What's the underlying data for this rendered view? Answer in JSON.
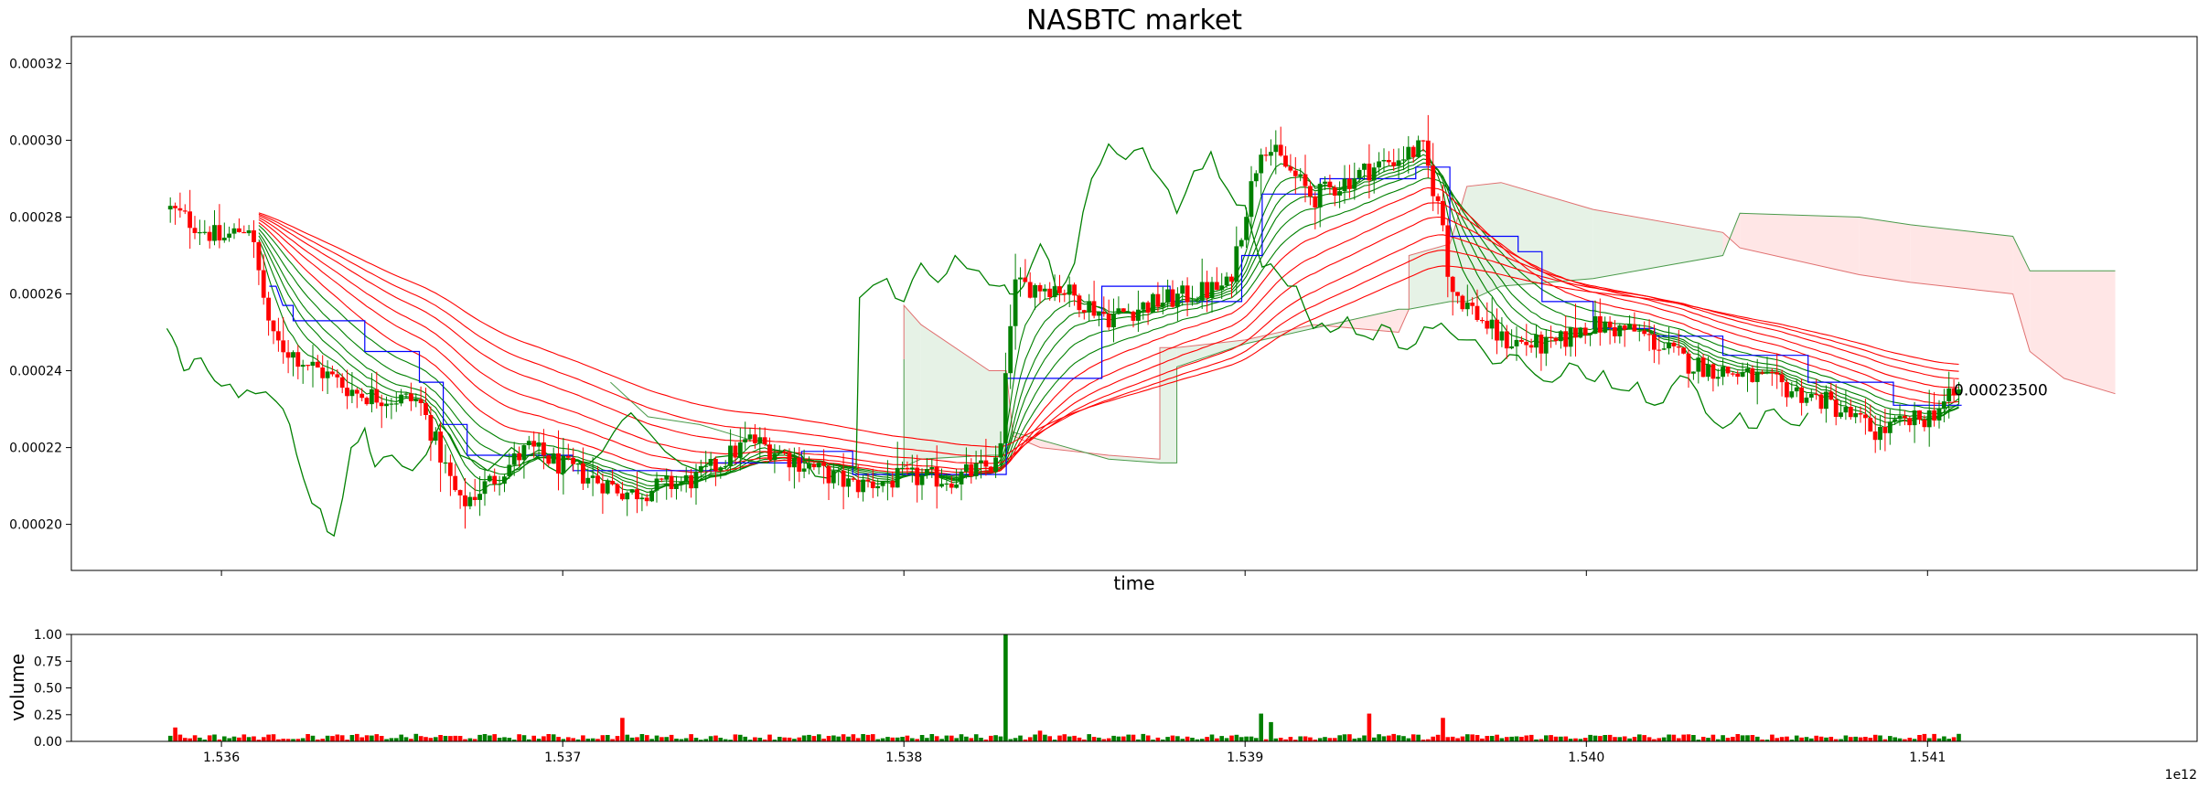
{
  "chart_data": [
    {
      "type": "candlestick",
      "title": "NASBTC market",
      "xlabel": "time",
      "ylabel": "",
      "xlim": [
        1535560000000,
        1541790000000
      ],
      "ylim": [
        0.000188,
        0.000327
      ],
      "yticks": [
        0.0002,
        0.00022,
        0.00024,
        0.00026,
        0.00028,
        0.0003,
        0.00032
      ],
      "ytick_labels": [
        "0.00020",
        "0.00022",
        "0.00024",
        "0.00026",
        "0.00028",
        "0.00030",
        "0.00032"
      ],
      "xticks": [
        1536000000000,
        1537000000000,
        1538000000000,
        1539000000000,
        1540000000000,
        1541000000000
      ],
      "colors": {
        "up": "#008000",
        "down": "#ff0000",
        "kijun": "#0000ff",
        "chikou": "#008000",
        "ribbon_fast": "#008000",
        "ribbon_slow": "#ff0000",
        "cloud_bull": "#e6f2e6",
        "cloud_bear": "#ffe6e6"
      },
      "last_price_annotation": "0.00023500",
      "last_price": 0.000235,
      "anchors": [
        [
          1535850000000,
          0.000282
        ],
        [
          1536000000000,
          0.000274
        ],
        [
          1536080000000,
          0.000278
        ],
        [
          1536150000000,
          0.000248
        ],
        [
          1536250000000,
          0.000242
        ],
        [
          1536400000000,
          0.000234
        ],
        [
          1536580000000,
          0.000232
        ],
        [
          1536700000000,
          0.000205
        ],
        [
          1536800000000,
          0.000212
        ],
        [
          1536900000000,
          0.00022
        ],
        [
          1537000000000,
          0.000215
        ],
        [
          1537200000000,
          0.000208
        ],
        [
          1537400000000,
          0.000212
        ],
        [
          1537550000000,
          0.000222
        ],
        [
          1537650000000,
          0.000218
        ],
        [
          1537850000000,
          0.00021
        ],
        [
          1538000000000,
          0.000212
        ],
        [
          1538150000000,
          0.000212
        ],
        [
          1538280000000,
          0.000216
        ],
        [
          1538320000000,
          0.000262
        ],
        [
          1538450000000,
          0.000262
        ],
        [
          1538600000000,
          0.000254
        ],
        [
          1538750000000,
          0.000258
        ],
        [
          1538950000000,
          0.000262
        ],
        [
          1539050000000,
          0.0003
        ],
        [
          1539200000000,
          0.000285
        ],
        [
          1539350000000,
          0.000292
        ],
        [
          1539520000000,
          0.000298
        ],
        [
          1539580000000,
          0.000278
        ],
        [
          1539600000000,
          0.000262
        ],
        [
          1539750000000,
          0.000248
        ],
        [
          1539900000000,
          0.000246
        ],
        [
          1540000000000,
          0.000252
        ],
        [
          1540150000000,
          0.00025
        ],
        [
          1540300000000,
          0.000242
        ],
        [
          1540500000000,
          0.000238
        ],
        [
          1540700000000,
          0.000232
        ],
        [
          1540850000000,
          0.000224
        ],
        [
          1541000000000,
          0.000228
        ],
        [
          1541100000000,
          0.000235
        ]
      ],
      "kijun": [
        [
          1536140000000,
          0.000262
        ],
        [
          1536160000000,
          0.000262
        ],
        [
          1536180000000,
          0.000257
        ],
        [
          1536210000000,
          0.000257
        ],
        [
          1536210000000,
          0.000253
        ],
        [
          1536420000000,
          0.000253
        ],
        [
          1536420000000,
          0.000245
        ],
        [
          1536580000000,
          0.000245
        ],
        [
          1536580000000,
          0.000237
        ],
        [
          1536650000000,
          0.000237
        ],
        [
          1536650000000,
          0.000226
        ],
        [
          1536720000000,
          0.000226
        ],
        [
          1536720000000,
          0.000218
        ],
        [
          1537030000000,
          0.000218
        ],
        [
          1537030000000,
          0.000214
        ],
        [
          1537450000000,
          0.000214
        ],
        [
          1537450000000,
          0.000216
        ],
        [
          1537700000000,
          0.000216
        ],
        [
          1537700000000,
          0.000219
        ],
        [
          1537850000000,
          0.000219
        ],
        [
          1537850000000,
          0.000213
        ],
        [
          1538300000000,
          0.000213
        ],
        [
          1538300000000,
          0.000238
        ],
        [
          1538580000000,
          0.000238
        ],
        [
          1538580000000,
          0.000262
        ],
        [
          1538780000000,
          0.000262
        ],
        [
          1538780000000,
          0.000258
        ],
        [
          1538990000000,
          0.000258
        ],
        [
          1538990000000,
          0.00027
        ],
        [
          1539050000000,
          0.00027
        ],
        [
          1539050000000,
          0.000286
        ],
        [
          1539220000000,
          0.000286
        ],
        [
          1539220000000,
          0.00029
        ],
        [
          1539500000000,
          0.00029
        ],
        [
          1539500000000,
          0.000293
        ],
        [
          1539600000000,
          0.000293
        ],
        [
          1539600000000,
          0.000275
        ],
        [
          1539800000000,
          0.000275
        ],
        [
          1539800000000,
          0.000271
        ],
        [
          1539870000000,
          0.000271
        ],
        [
          1539870000000,
          0.000258
        ],
        [
          1540020000000,
          0.000258
        ],
        [
          1540020000000,
          0.000251
        ],
        [
          1540200000000,
          0.000251
        ],
        [
          1540200000000,
          0.000249
        ],
        [
          1540400000000,
          0.000249
        ],
        [
          1540400000000,
          0.000244
        ],
        [
          1540650000000,
          0.000244
        ],
        [
          1540650000000,
          0.000237
        ],
        [
          1540900000000,
          0.000237
        ],
        [
          1540900000000,
          0.000231
        ],
        [
          1541100000000,
          0.000231
        ]
      ],
      "chikou": [
        [
          1535840000000,
          0.000251
        ],
        [
          1535870000000,
          0.000246
        ],
        [
          1535890000000,
          0.00024
        ],
        [
          1535920000000,
          0.000243
        ],
        [
          1535960000000,
          0.00024
        ],
        [
          1536000000000,
          0.000236
        ],
        [
          1536050000000,
          0.000233
        ],
        [
          1536100000000,
          0.000234
        ],
        [
          1536160000000,
          0.000232
        ],
        [
          1536200000000,
          0.000226
        ],
        [
          1536240000000,
          0.000212
        ],
        [
          1536290000000,
          0.000204
        ],
        [
          1536330000000,
          0.000197
        ],
        [
          1536380000000,
          0.00022
        ],
        [
          1536420000000,
          0.000225
        ],
        [
          1536450000000,
          0.000215
        ],
        [
          1536500000000,
          0.000218
        ],
        [
          1536560000000,
          0.000214
        ],
        [
          1536640000000,
          0.000226
        ],
        [
          1536700000000,
          0.000218
        ],
        [
          1536780000000,
          0.000214
        ],
        [
          1536850000000,
          0.00022
        ],
        [
          1536920000000,
          0.000218
        ],
        [
          1537000000000,
          0.000213
        ],
        [
          1537080000000,
          0.000216
        ],
        [
          1537150000000,
          0.000224
        ],
        [
          1537200000000,
          0.000229
        ],
        [
          1537300000000,
          0.000219
        ],
        [
          1537400000000,
          0.000214
        ],
        [
          1537500000000,
          0.000218
        ],
        [
          1537600000000,
          0.000216
        ],
        [
          1537700000000,
          0.000218
        ],
        [
          1537780000000,
          0.000212
        ],
        [
          1537860000000,
          0.000215
        ],
        [
          1537870000000,
          0.000259
        ],
        [
          1537950000000,
          0.000264
        ],
        [
          1538000000000,
          0.000258
        ],
        [
          1538050000000,
          0.000268
        ],
        [
          1538100000000,
          0.000263
        ],
        [
          1538150000000,
          0.00027
        ],
        [
          1538220000000,
          0.000266
        ],
        [
          1538280000000,
          0.000262
        ],
        [
          1538310000000,
          0.00026
        ],
        [
          1538350000000,
          0.000262
        ],
        [
          1538400000000,
          0.000273
        ],
        [
          1538450000000,
          0.00026
        ],
        [
          1538500000000,
          0.000268
        ],
        [
          1538550000000,
          0.00029
        ],
        [
          1538600000000,
          0.000299
        ],
        [
          1538650000000,
          0.000295
        ],
        [
          1538700000000,
          0.000298
        ],
        [
          1538750000000,
          0.00029
        ],
        [
          1538800000000,
          0.000281
        ],
        [
          1538850000000,
          0.000292
        ],
        [
          1538900000000,
          0.000297
        ],
        [
          1538950000000,
          0.000287
        ],
        [
          1539000000000,
          0.000283
        ],
        [
          1539050000000,
          0.000267
        ],
        [
          1539100000000,
          0.000265
        ],
        [
          1539150000000,
          0.000262
        ],
        [
          1539200000000,
          0.000251
        ],
        [
          1539250000000,
          0.00025
        ],
        [
          1539300000000,
          0.000254
        ],
        [
          1539350000000,
          0.000249
        ],
        [
          1539400000000,
          0.000252
        ],
        [
          1539450000000,
          0.000246
        ],
        [
          1539500000000,
          0.000247
        ],
        [
          1539550000000,
          0.000251
        ],
        [
          1539600000000,
          0.00025
        ],
        [
          1539650000000,
          0.000248
        ],
        [
          1539700000000,
          0.000245
        ],
        [
          1539750000000,
          0.000242
        ],
        [
          1539800000000,
          0.000244
        ],
        [
          1539850000000,
          0.000239
        ],
        [
          1539900000000,
          0.000237
        ],
        [
          1539950000000,
          0.000242
        ],
        [
          1540000000000,
          0.000238
        ],
        [
          1540050000000,
          0.00024
        ],
        [
          1540100000000,
          0.000235
        ],
        [
          1540150000000,
          0.000237
        ],
        [
          1540200000000,
          0.000231
        ],
        [
          1540250000000,
          0.000236
        ],
        [
          1540300000000,
          0.000238
        ],
        [
          1540350000000,
          0.000229
        ],
        [
          1540400000000,
          0.000225
        ],
        [
          1540450000000,
          0.000229
        ],
        [
          1540500000000,
          0.000225
        ],
        [
          1540550000000,
          0.00023
        ],
        [
          1540600000000,
          0.000226
        ],
        [
          1540650000000,
          0.000229
        ]
      ],
      "cloud": [
        {
          "x": 1538000000000,
          "a": 0.000243,
          "b": 0.000243
        },
        {
          "x": 1538000000000,
          "a": 0.000257,
          "b": 0.000215
        },
        {
          "x": 1538050000000,
          "a": 0.000252,
          "b": 0.000217
        },
        {
          "x": 1538250000000,
          "a": 0.00024,
          "b": 0.000218
        },
        {
          "x": 1538300000000,
          "a": 0.00024,
          "b": 0.000218
        },
        {
          "x": 1538320000000,
          "a": 0.000223,
          "b": 0.000224
        },
        {
          "x": 1538400000000,
          "a": 0.00022,
          "b": 0.000222
        },
        {
          "x": 1538600000000,
          "a": 0.000218,
          "b": 0.000217
        },
        {
          "x": 1538750000000,
          "a": 0.000217,
          "b": 0.000216
        },
        {
          "x": 1538750000000,
          "a": 0.000246,
          "b": 0.000216
        },
        {
          "x": 1538800000000,
          "a": 0.000246,
          "b": 0.000216
        },
        {
          "x": 1538800000000,
          "a": 0.000246,
          "b": 0.000241
        },
        {
          "x": 1539000000000,
          "a": 0.000248,
          "b": 0.000247
        },
        {
          "x": 1539200000000,
          "a": 0.000252,
          "b": 0.000251
        },
        {
          "x": 1539450000000,
          "a": 0.00025,
          "b": 0.000256
        },
        {
          "x": 1539480000000,
          "a": 0.000256,
          "b": 0.000256
        },
        {
          "x": 1539480000000,
          "a": 0.00027,
          "b": 0.000256
        },
        {
          "x": 1539600000000,
          "a": 0.000273,
          "b": 0.000258
        },
        {
          "x": 1539650000000,
          "a": 0.000288,
          "b": 0.000258
        },
        {
          "x": 1539750000000,
          "a": 0.000289,
          "b": 0.000262
        },
        {
          "x": 1540020000000,
          "a": 0.000282,
          "b": 0.000264
        },
        {
          "x": 1540400000000,
          "a": 0.000276,
          "b": 0.00027
        },
        {
          "x": 1540450000000,
          "a": 0.000272,
          "b": 0.000281
        },
        {
          "x": 1540800000000,
          "a": 0.000265,
          "b": 0.00028
        },
        {
          "x": 1540950000000,
          "a": 0.000263,
          "b": 0.000278
        },
        {
          "x": 1541250000000,
          "a": 0.00026,
          "b": 0.000275
        },
        {
          "x": 1541300000000,
          "a": 0.000245,
          "b": 0.000266
        },
        {
          "x": 1541400000000,
          "a": 0.000238,
          "b": 0.000266
        },
        {
          "x": 1541550000000,
          "a": 0.000234,
          "b": 0.000266
        }
      ],
      "chikou_stub": [
        [
          1537140000000,
          0.000237
        ],
        [
          1537250000000,
          0.000228
        ],
        [
          1537400000000,
          0.000226
        ],
        [
          1537550000000,
          0.000222
        ]
      ],
      "volume_spike": [
        1538300000000,
        1.0
      ]
    },
    {
      "type": "bar",
      "ylabel": "volume",
      "ylim": [
        0,
        1.0
      ],
      "yticks": [
        0,
        0.25,
        0.5,
        0.75,
        1.0
      ],
      "ytick_labels": [
        "0.00",
        "0.25",
        "0.50",
        "0.75",
        "1.00"
      ],
      "xticks": [
        1536000000000,
        1537000000000,
        1538000000000,
        1539000000000,
        1540000000000,
        1541000000000
      ],
      "xtick_labels": [
        "1.536",
        "1.537",
        "1.538",
        "1.539",
        "1.540",
        "1.541"
      ],
      "offset_label": "1e12",
      "volume_peaks": [
        [
          1537180000000,
          0.22
        ],
        [
          1538300000000,
          1.0
        ],
        [
          1539040000000,
          0.26
        ],
        [
          1539080000000,
          0.18
        ],
        [
          1539360000000,
          0.26
        ],
        [
          1539580000000,
          0.22
        ],
        [
          1538400000000,
          0.1
        ],
        [
          1535860000000,
          0.13
        ]
      ]
    }
  ]
}
